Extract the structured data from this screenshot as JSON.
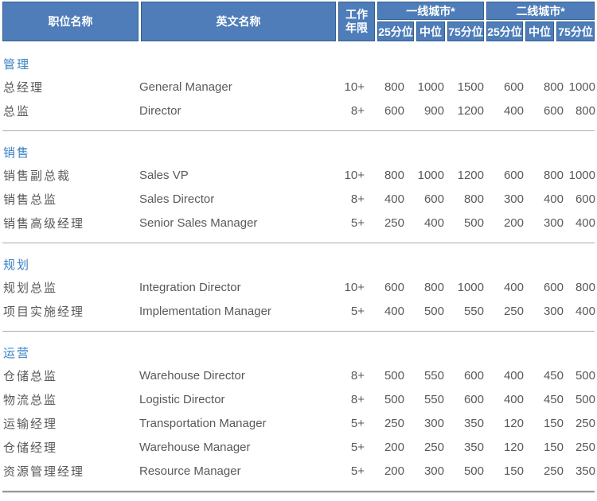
{
  "table": {
    "header": {
      "col_position": "职位名称",
      "col_english": "英文名称",
      "col_years_line1": "工作",
      "col_years_line2": "年限",
      "group_tier1": "一线城市*",
      "group_tier2": "二线城市*",
      "sub_p25": "25分位",
      "sub_median": "中位",
      "sub_p75": "75分位"
    },
    "sections": [
      {
        "title": "管理",
        "rows": [
          {
            "position": "总经理",
            "english": "General Manager",
            "years": "10+",
            "values": [
              "800",
              "1000",
              "1500",
              "600",
              "800",
              "1000"
            ]
          },
          {
            "position": "总监",
            "english": "Director",
            "years": "8+",
            "values": [
              "600",
              "900",
              "1200",
              "400",
              "600",
              "800"
            ]
          }
        ]
      },
      {
        "title": "销售",
        "rows": [
          {
            "position": "销售副总裁",
            "english": "Sales VP",
            "years": "10+",
            "values": [
              "800",
              "1000",
              "1200",
              "600",
              "800",
              "1000"
            ]
          },
          {
            "position": "销售总监",
            "english": "Sales Director",
            "years": "8+",
            "values": [
              "400",
              "600",
              "800",
              "300",
              "400",
              "600"
            ]
          },
          {
            "position": "销售高级经理",
            "english": "Senior Sales Manager",
            "years": "5+",
            "values": [
              "250",
              "400",
              "500",
              "200",
              "300",
              "400"
            ]
          }
        ]
      },
      {
        "title": "规划",
        "rows": [
          {
            "position": "规划总监",
            "english": "Integration Director",
            "years": "10+",
            "values": [
              "600",
              "800",
              "1000",
              "400",
              "600",
              "800"
            ]
          },
          {
            "position": "项目实施经理",
            "english": "Implementation Manager",
            "years": "5+",
            "values": [
              "400",
              "500",
              "550",
              "250",
              "300",
              "400"
            ]
          }
        ]
      },
      {
        "title": "运营",
        "rows": [
          {
            "position": "仓储总监",
            "english": "Warehouse Director",
            "years": "8+",
            "values": [
              "500",
              "550",
              "600",
              "400",
              "450",
              "500"
            ]
          },
          {
            "position": "物流总监",
            "english": "Logistic Director",
            "years": "8+",
            "values": [
              "500",
              "550",
              "600",
              "400",
              "450",
              "500"
            ]
          },
          {
            "position": "运输经理",
            "english": "Transportation Manager",
            "years": "5+",
            "values": [
              "250",
              "300",
              "350",
              "120",
              "150",
              "250"
            ]
          },
          {
            "position": "仓储经理",
            "english": "Warehouse Manager",
            "years": "5+",
            "values": [
              "200",
              "250",
              "350",
              "120",
              "150",
              "250"
            ]
          },
          {
            "position": "资源管理经理",
            "english": "Resource Manager",
            "years": "5+",
            "values": [
              "200",
              "300",
              "500",
              "150",
              "250",
              "350"
            ]
          }
        ]
      }
    ]
  },
  "colors": {
    "header_bg": "#4e7db9",
    "header_border": "#33608e",
    "header_text": "#ffffff",
    "section_title_text": "#3781c3",
    "body_text": "#595959",
    "divider": "#ababab"
  }
}
